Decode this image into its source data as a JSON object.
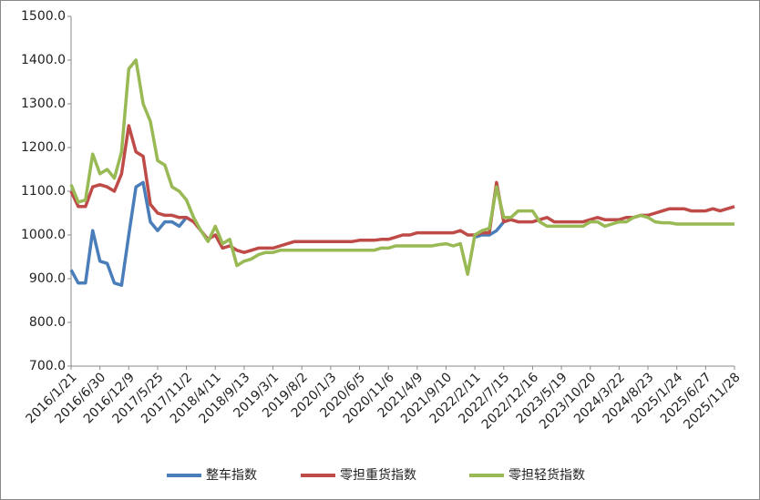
{
  "chart_data": {
    "type": "line",
    "categories": [
      "2016/1/21",
      null,
      null,
      null,
      "2016/6/30",
      null,
      null,
      null,
      "2016/12/9",
      null,
      null,
      null,
      "2017/5/25",
      null,
      null,
      null,
      "2017/11/2",
      null,
      null,
      null,
      "2018/4/11",
      null,
      null,
      null,
      "2018/9/13",
      null,
      null,
      null,
      "2019/3/1",
      null,
      null,
      null,
      "2019/8/2",
      null,
      null,
      null,
      "2020/1/3",
      null,
      null,
      null,
      "2020/6/5",
      null,
      null,
      null,
      "2020/11/6",
      null,
      null,
      null,
      "2021/4/9",
      null,
      null,
      null,
      "2021/9/10",
      null,
      null,
      null,
      "2022/2/11",
      null,
      null,
      null,
      "2022/7/15",
      null,
      null,
      null,
      "2022/12/16",
      null,
      null,
      null,
      "2023/5/19",
      null,
      null,
      null,
      "2023/10/20",
      null,
      null,
      null,
      "2024/3/22",
      null,
      null,
      null,
      "2024/8/23",
      null,
      null,
      null,
      "2025/1/24",
      null,
      null,
      null,
      "2025/6/27",
      null,
      null,
      null,
      "2025/11/28"
    ],
    "series": [
      {
        "name": "整车指数",
        "color": "#4a7ebb",
        "values": [
          920,
          890,
          890,
          1010,
          940,
          935,
          890,
          885,
          1000,
          1110,
          1120,
          1030,
          1010,
          1030,
          1030,
          1020,
          1040,
          null,
          null,
          null,
          null,
          null,
          null,
          null,
          null,
          null,
          null,
          null,
          null,
          null,
          null,
          null,
          null,
          null,
          null,
          null,
          null,
          null,
          null,
          null,
          null,
          null,
          null,
          null,
          null,
          null,
          null,
          null,
          null,
          null,
          null,
          null,
          null,
          null,
          null,
          null,
          995,
          1000,
          1000,
          1010,
          1030,
          null,
          null,
          null,
          null,
          null,
          null,
          null,
          null,
          null,
          null,
          null,
          null,
          null,
          null,
          null,
          null,
          null,
          null,
          null,
          null,
          null,
          null,
          null,
          null,
          null,
          null,
          null,
          null,
          null,
          null,
          null,
          null
        ]
      },
      {
        "name": "零担重货指数",
        "color": "#be4b48",
        "values": [
          1100,
          1065,
          1065,
          1110,
          1115,
          1110,
          1100,
          1140,
          1250,
          1190,
          1180,
          1070,
          1050,
          1045,
          1045,
          1040,
          1040,
          1030,
          1010,
          990,
          1000,
          970,
          975,
          965,
          960,
          965,
          970,
          970,
          970,
          975,
          980,
          985,
          985,
          985,
          985,
          985,
          985,
          985,
          985,
          985,
          988,
          988,
          988,
          990,
          990,
          995,
          1000,
          1000,
          1005,
          1005,
          1005,
          1005,
          1005,
          1005,
          1010,
          1000,
          1000,
          1005,
          1005,
          1120,
          1030,
          1035,
          1030,
          1030,
          1030,
          1035,
          1040,
          1030,
          1030,
          1030,
          1030,
          1030,
          1035,
          1040,
          1035,
          1035,
          1035,
          1040,
          1040,
          1045,
          1045,
          1050,
          1055,
          1060,
          1060,
          1060,
          1055,
          1055,
          1055,
          1060,
          1055,
          1060,
          1065
        ]
      },
      {
        "name": "零担轻货指数",
        "color": "#98b954",
        "values": [
          1115,
          1075,
          1080,
          1185,
          1140,
          1150,
          1130,
          1190,
          1380,
          1400,
          1300,
          1260,
          1170,
          1160,
          1110,
          1100,
          1080,
          1040,
          1010,
          985,
          1020,
          980,
          990,
          930,
          940,
          945,
          955,
          960,
          960,
          965,
          965,
          965,
          965,
          965,
          965,
          965,
          965,
          965,
          965,
          965,
          965,
          965,
          965,
          970,
          970,
          975,
          975,
          975,
          975,
          975,
          975,
          978,
          980,
          975,
          980,
          910,
          1000,
          1010,
          1015,
          1110,
          1040,
          1040,
          1055,
          1055,
          1055,
          1030,
          1020,
          1020,
          1020,
          1020,
          1020,
          1020,
          1030,
          1030,
          1020,
          1025,
          1030,
          1030,
          1040,
          1045,
          1040,
          1030,
          1028,
          1028,
          1025,
          1025,
          1025,
          1025,
          1025,
          1025,
          1025,
          1025,
          1025
        ]
      }
    ],
    "ylim": [
      700,
      1500
    ],
    "yticks": [
      {
        "value": 700,
        "label": "700.0"
      },
      {
        "value": 800,
        "label": "800.0"
      },
      {
        "value": 900,
        "label": "900.0"
      },
      {
        "value": 1000,
        "label": "1000.0"
      },
      {
        "value": 1100,
        "label": "1100.0"
      },
      {
        "value": 1200,
        "label": "1200.0"
      },
      {
        "value": 1300,
        "label": "1300.0"
      },
      {
        "value": 1400,
        "label": "1400.0"
      },
      {
        "value": 1500,
        "label": "1500.0"
      }
    ],
    "grid": false,
    "legend": "bottom"
  }
}
